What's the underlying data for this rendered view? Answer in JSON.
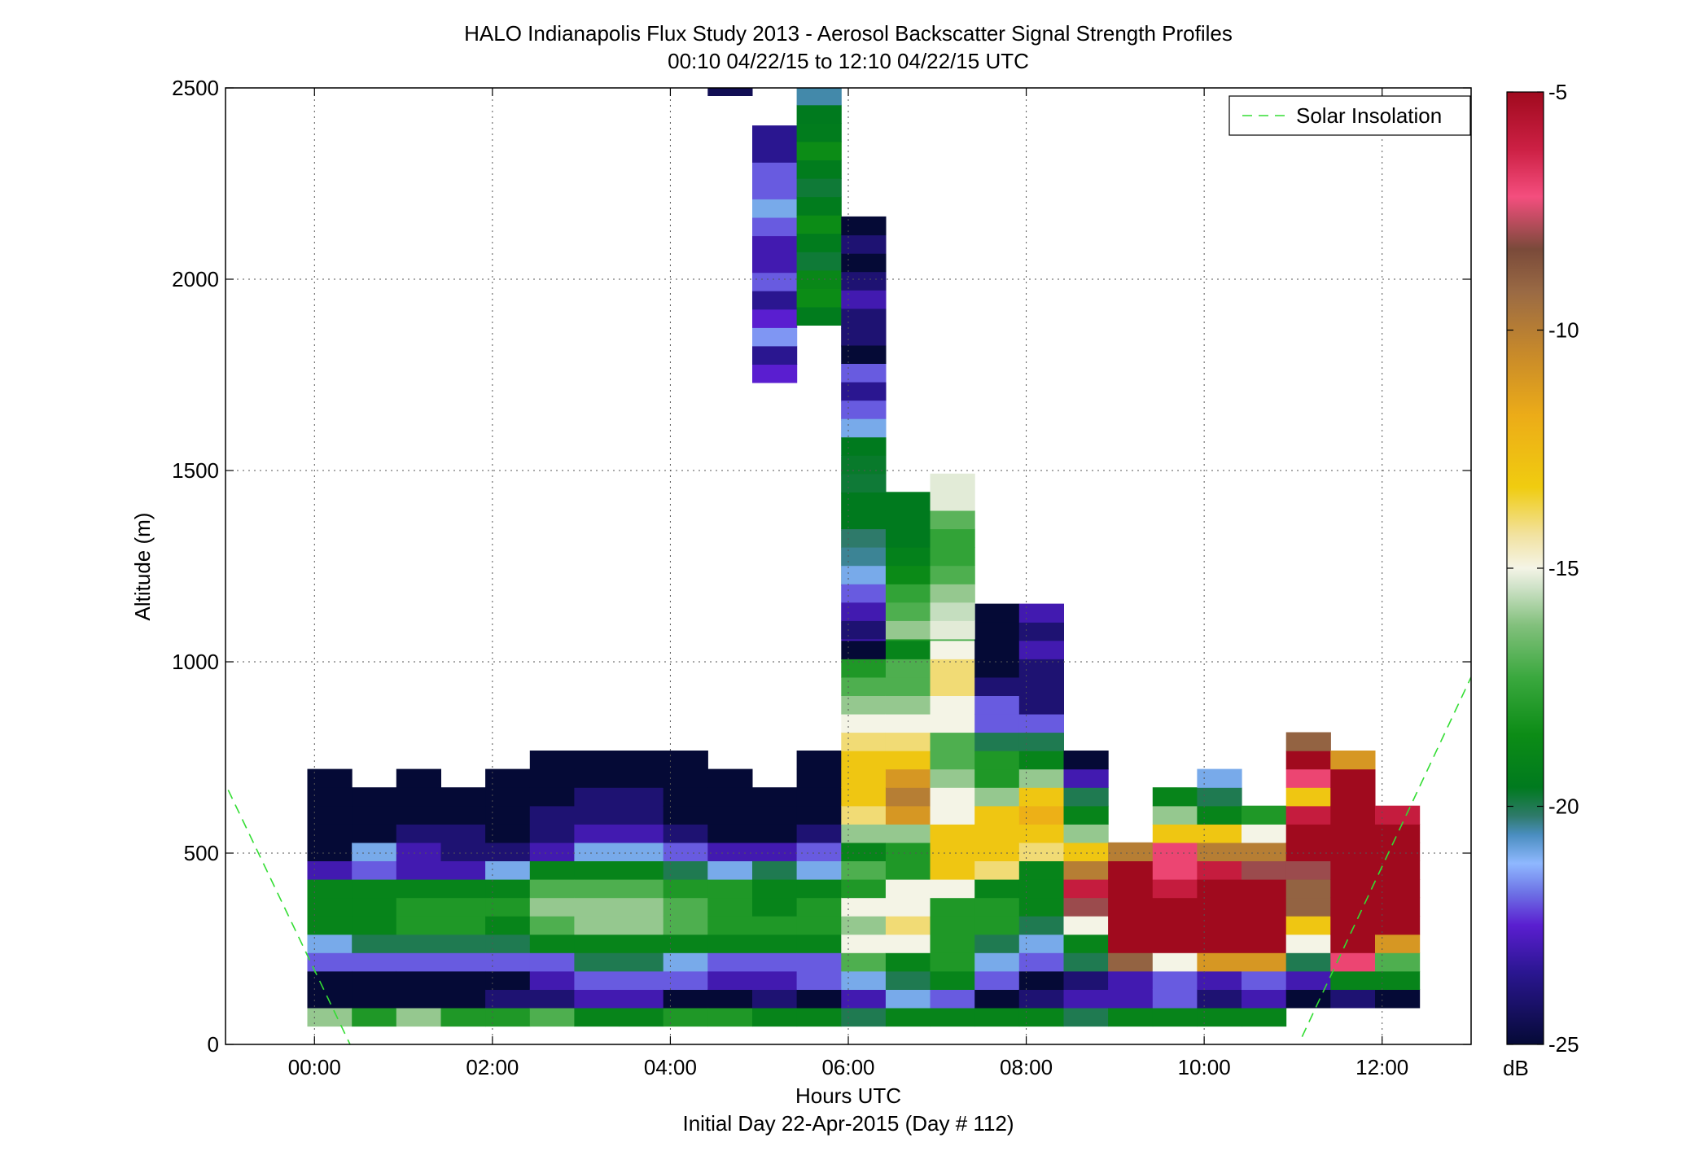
{
  "chart_data": {
    "type": "heatmap",
    "title": "HALO Indianapolis Flux Study 2013 - Aerosol Backscatter Signal Strength Profiles",
    "subtitle": "00:10 04/22/15 to 12:10 04/22/15  UTC",
    "xlabel": "Hours UTC",
    "xlabel2": "Initial Day 22-Apr-2015 (Day # 112)",
    "ylabel": "Altitude (m)",
    "xlim": [
      -1.0,
      13.0
    ],
    "ylim": [
      0,
      2500
    ],
    "x_ticks": [
      0,
      2,
      4,
      6,
      8,
      10,
      12
    ],
    "x_tick_labels": [
      "00:00",
      "02:00",
      "04:00",
      "06:00",
      "08:00",
      "10:00",
      "12:00"
    ],
    "y_ticks": [
      0,
      500,
      1000,
      1500,
      2000,
      2500
    ],
    "y_tick_labels": [
      "0",
      "500",
      "1000",
      "1500",
      "2000",
      "2500"
    ],
    "grid": true,
    "legend": {
      "entries": [
        "Solar Insolation"
      ],
      "placement": "top-right"
    },
    "colorbar": {
      "min": -25,
      "max": -5,
      "unit": "dB",
      "ticks": [
        -25,
        -20,
        -15,
        -10,
        -5
      ],
      "tick_labels": [
        "-25",
        "-20",
        "-15",
        "-10",
        "-5"
      ],
      "palette": [
        [
          -25.0,
          "#050a36"
        ],
        [
          -23.5,
          "#2a1690"
        ],
        [
          -22.5,
          "#5a1ed0"
        ],
        [
          -21.8,
          "#6e74e6"
        ],
        [
          -21.2,
          "#8fb8ff"
        ],
        [
          -20.6,
          "#4a8ec0"
        ],
        [
          -20.2,
          "#2e7a6a"
        ],
        [
          -19.6,
          "#007a1e"
        ],
        [
          -18.5,
          "#0c8c16"
        ],
        [
          -17.3,
          "#3aa83e"
        ],
        [
          -16.2,
          "#82c07c"
        ],
        [
          -15.4,
          "#cfe2c8"
        ],
        [
          -15.0,
          "#f4f4e6"
        ],
        [
          -14.3,
          "#f2e2a0"
        ],
        [
          -13.3,
          "#f0cc10"
        ],
        [
          -11.8,
          "#ecac18"
        ],
        [
          -10.5,
          "#c88a2a"
        ],
        [
          -9.2,
          "#9a6a44"
        ],
        [
          -8.3,
          "#7a4a3a"
        ],
        [
          -7.2,
          "#f44e7e"
        ],
        [
          -6.2,
          "#cc2044"
        ],
        [
          -5.0,
          "#a00a1e"
        ]
      ]
    },
    "cell_width_hours": 0.5,
    "cell_height_m": 48,
    "columns": [
      {
        "x": 0.17,
        "z0": 48,
        "values": [
          -16,
          -25,
          -25,
          -22,
          -21,
          -19,
          -19,
          -19,
          -23,
          -25,
          -25,
          -25,
          -25,
          -25
        ]
      },
      {
        "x": 0.67,
        "z0": 48,
        "values": [
          -18,
          -25,
          -25,
          -22,
          -20,
          -19,
          -19,
          -19,
          -22,
          -21,
          -25,
          -25,
          -25
        ]
      },
      {
        "x": 1.17,
        "z0": 48,
        "values": [
          -16,
          -25,
          -25,
          -22,
          -20,
          -18,
          -18,
          -19,
          -23,
          -23,
          -24,
          -25,
          -25,
          -25
        ]
      },
      {
        "x": 1.67,
        "z0": 48,
        "values": [
          -18,
          -25,
          -25,
          -22,
          -20,
          -18,
          -18,
          -19,
          -23,
          -24,
          -24,
          -25,
          -25
        ]
      },
      {
        "x": 2.17,
        "z0": 48,
        "values": [
          -18,
          -24,
          -25,
          -22,
          -20,
          -19,
          -18,
          -19,
          -21,
          -24,
          -25,
          -25,
          -25,
          -25
        ]
      },
      {
        "x": 2.67,
        "z0": 48,
        "values": [
          -17,
          -24,
          -23,
          -22,
          -19,
          -17,
          -16,
          -17,
          -19,
          -23,
          -24,
          -24,
          -25,
          -25,
          -25
        ]
      },
      {
        "x": 3.17,
        "z0": 48,
        "values": [
          -19,
          -23,
          -22,
          -20,
          -19,
          -16,
          -16,
          -17,
          -19,
          -21,
          -23,
          -24,
          -24,
          -25,
          -25
        ]
      },
      {
        "x": 3.67,
        "z0": 48,
        "values": [
          -19,
          -23,
          -22,
          -20,
          -19,
          -16,
          -16,
          -17,
          -19,
          -21,
          -23,
          -24,
          -24,
          -25,
          -25
        ]
      },
      {
        "x": 4.17,
        "z0": 48,
        "values": [
          -18,
          -25,
          -22,
          -21,
          -19,
          -17,
          -17,
          -18,
          -20,
          -22,
          -24,
          -25,
          -25,
          -25,
          -25
        ]
      },
      {
        "x": 4.67,
        "z0": 48,
        "values": [
          -18,
          -25,
          -23,
          -22,
          -19,
          -18,
          -18,
          -18,
          -21,
          -23,
          -25,
          -25,
          -25,
          -25
        ]
      },
      {
        "x": 5.17,
        "z0": 48,
        "values": [
          -19,
          -24,
          -23,
          -22,
          -19,
          -18,
          -19,
          -19,
          -20,
          -23,
          -25,
          -25,
          -25
        ]
      },
      {
        "x": 5.67,
        "z0": 48,
        "values": [
          -19,
          -25,
          -22,
          -22,
          -19,
          -18,
          -18,
          -19,
          -21,
          -22,
          -24,
          -25,
          -25,
          -25,
          -25
        ]
      },
      {
        "x": 6.17,
        "z0": 48,
        "values": [
          -20,
          -23,
          -21,
          -17,
          -15,
          -16,
          -15,
          -18,
          -17,
          -19,
          -16,
          -14,
          -13,
          -13,
          -13,
          -14,
          -15,
          -16,
          -17,
          -18,
          -25,
          -23,
          -22,
          -21,
          -20,
          -20,
          -19,
          -19,
          -19,
          -19,
          -20,
          -21,
          -22,
          -23,
          -24,
          -22,
          -22,
          -25,
          -24,
          -24,
          -23,
          -24,
          -25
        ]
      },
      {
        "x": 6.67,
        "z0": 48,
        "values": [
          -19,
          -21,
          -20,
          -19,
          -15,
          -14,
          -15,
          -15,
          -18,
          -18,
          -16,
          -11,
          -10,
          -11,
          -13,
          -14,
          -15,
          -16,
          -17,
          -17,
          -19,
          -18,
          -18,
          -19,
          -19,
          -19
        ]
      },
      {
        "x": 7.17,
        "z0": 48,
        "values": [
          -19,
          -22,
          -19,
          -18,
          -18,
          -18,
          -18,
          -15,
          -13,
          -13,
          -13,
          -15,
          -15,
          -16,
          -17,
          -17,
          -15,
          -15,
          -14,
          -14,
          -15,
          -17,
          -17,
          -16,
          -16,
          -15,
          -15
        ]
      },
      {
        "x": 7.67,
        "z0": 48,
        "values": [
          -19,
          -25,
          -22,
          -21,
          -20,
          -18,
          -18,
          -19,
          -14,
          -13,
          -13,
          -13,
          -16,
          -18,
          -18,
          -20,
          -22,
          -22,
          -24,
          -25,
          -25,
          -25,
          -25
        ]
      },
      {
        "x": 8.17,
        "z0": 48,
        "values": [
          -19,
          -24,
          -25,
          -22,
          -21,
          -20,
          -19,
          -19,
          -19,
          -14,
          -13,
          -12,
          -13,
          -16,
          -19,
          -20,
          -22,
          -24,
          -24,
          -24,
          -23,
          -24,
          -23
        ]
      },
      {
        "x": 8.67,
        "z0": 48,
        "values": [
          -20,
          -23,
          -24,
          -20,
          -19,
          -15,
          -8,
          -6,
          -10,
          -13,
          -16,
          -19,
          -20,
          -23,
          -25
        ]
      },
      {
        "x": 9.17,
        "z0": 48,
        "values": [
          -19,
          -23,
          -23,
          -9,
          -5,
          -5,
          -5,
          -5,
          -5,
          -10
        ]
      },
      {
        "x": 9.67,
        "z0": 48,
        "values": [
          -19,
          -22,
          -22,
          -15,
          -5,
          -5,
          -5,
          -6,
          -7,
          -7,
          -13,
          -16,
          -19
        ]
      },
      {
        "x": 10.17,
        "z0": 48,
        "values": [
          -19,
          -24,
          -23,
          -11,
          -5,
          -5,
          -5,
          -5,
          -6,
          -10,
          -13,
          -19,
          -20,
          -21
        ]
      },
      {
        "x": 10.67,
        "z0": 48,
        "values": [
          -19,
          -23,
          -22,
          -11,
          -5,
          -5,
          -5,
          -5,
          -8,
          -10,
          -15,
          -18
        ]
      },
      {
        "x": 11.17,
        "z0": 96,
        "values": [
          -25,
          -23,
          -20,
          -15,
          -13,
          -9,
          -9,
          -8,
          -5,
          -5,
          -6,
          -13,
          -7,
          -5,
          -9
        ]
      },
      {
        "x": 11.67,
        "z0": 96,
        "values": [
          -24,
          -19,
          -7,
          -5,
          -5,
          -5,
          -5,
          -5,
          -5,
          -5,
          -5,
          -5,
          -5,
          -11
        ]
      },
      {
        "x": 12.17,
        "z0": 96,
        "values": [
          -25,
          -19,
          -17,
          -11,
          -5,
          -5,
          -5,
          -5,
          -5,
          -5,
          -6
        ]
      }
    ],
    "upper_columns": [
      {
        "x": 4.67,
        "z0": 2480,
        "values": [
          -24.5
        ]
      },
      {
        "x": 5.17,
        "z0": 1730,
        "values": [
          -22.5,
          -23.5,
          -21.5,
          -22.5,
          -23.5,
          -22,
          -23,
          -23,
          -22,
          -21,
          -22,
          -22,
          -23.5,
          -23.5
        ]
      },
      {
        "x": 5.67,
        "z0": 1880,
        "values": [
          -19.5,
          -18.5,
          -18.8,
          -19.8,
          -19.5,
          -18.5,
          -19.5,
          -19.8,
          -19.5,
          -18.5,
          -19.5,
          -19.6,
          -20.5
        ]
      },
      {
        "x": 6.17,
        "z0": 1060,
        "values": [
          -24,
          -23,
          -22,
          -21,
          -20.4,
          -20.2,
          -19.6,
          -19.6,
          -19.8,
          -19.7,
          -19.6,
          -21,
          -22,
          -23.5,
          -22,
          -25,
          -24,
          -24,
          -23,
          -24,
          -25,
          -24,
          -25.5
        ]
      },
      {
        "x": 6.67,
        "z0": 1060,
        "values": [
          -16,
          -17,
          -17.5,
          -18.6,
          -19.2,
          -19.6,
          -19.6,
          -19.6
        ]
      },
      {
        "x": 7.17,
        "z0": 1060,
        "values": [
          -15.2,
          -15.5,
          -16,
          -17,
          -17.5,
          -17.5,
          -16.8,
          -15.2,
          -15.2
        ]
      }
    ]
  }
}
